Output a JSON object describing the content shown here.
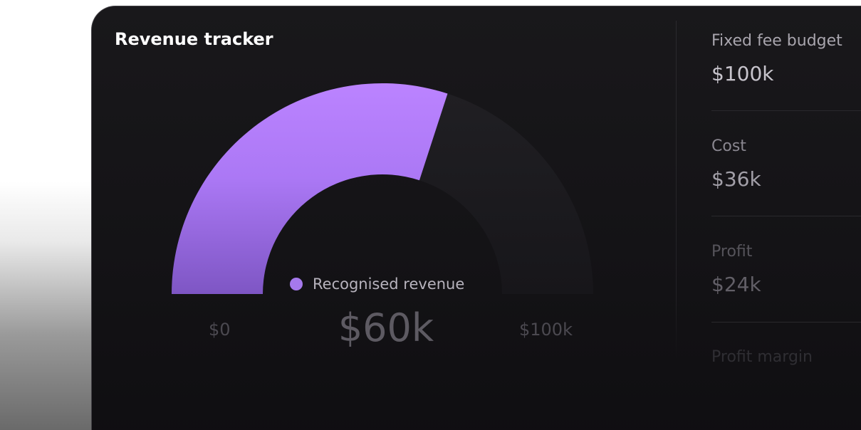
{
  "card": {
    "title": "Revenue tracker"
  },
  "gauge": {
    "legend_label": "Recognised revenue",
    "value_label": "$60k",
    "min_label": "$0",
    "max_label": "$100k",
    "value": 60,
    "min": 0,
    "max": 100,
    "fill_color": "#a579ec",
    "track_color": "#1d1c20"
  },
  "stats": [
    {
      "label": "Fixed fee budget",
      "value": "$100k"
    },
    {
      "label": "Cost",
      "value": "$36k"
    },
    {
      "label": "Profit",
      "value": "$24k"
    },
    {
      "label": "Profit margin",
      "value": ""
    }
  ]
}
